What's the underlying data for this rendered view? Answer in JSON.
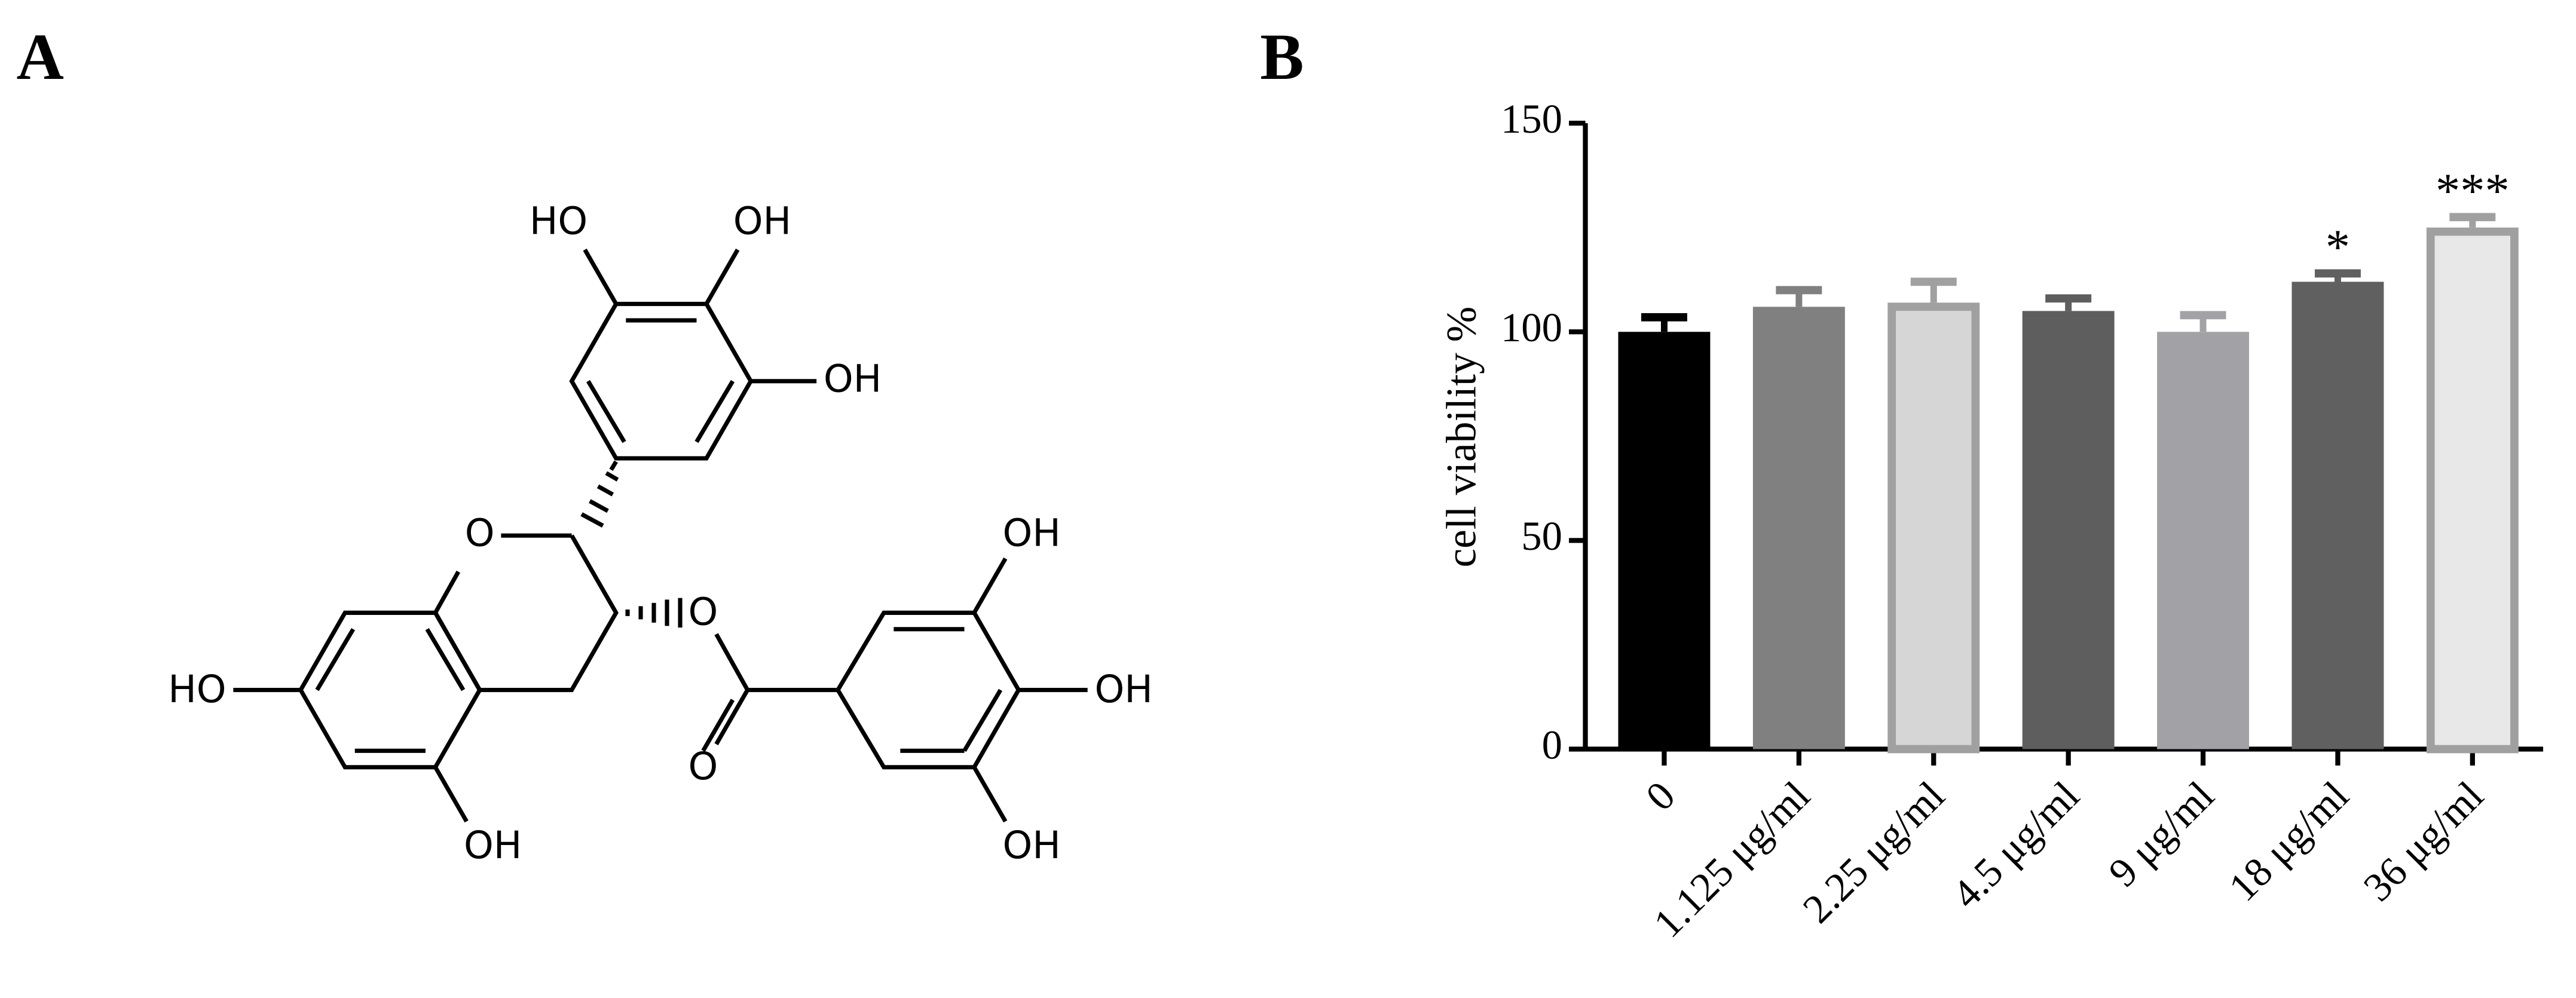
{
  "panel_labels": [
    "A",
    "B"
  ],
  "structure": {
    "atom_labels": [
      "HO",
      "OH",
      "OH",
      "O",
      "O",
      "HO",
      "OH",
      "O",
      "OH",
      "OH",
      "OH"
    ]
  },
  "chart_data": {
    "type": "bar",
    "ylabel": "cell viability %",
    "categories": [
      "0",
      "1.125 μg/ml",
      "2.25 μg/ml",
      "4.5 μg/ml",
      "9 μg/ml",
      "18 μg/ml",
      "36 μg/ml"
    ],
    "values": [
      100,
      106,
      107,
      105,
      100,
      112,
      125
    ],
    "errors": [
      3.5,
      4,
      5,
      3,
      4,
      2,
      2.5
    ],
    "colors": [
      "#000000",
      "#808080",
      "#d6d6d6",
      "#5e5e5e",
      "#a2a2a6",
      "#606060",
      "#e8e8e8"
    ],
    "outline_colors": [
      null,
      null,
      "#a0a0a0",
      null,
      null,
      null,
      "#a0a0a0"
    ],
    "significance": [
      null,
      null,
      null,
      null,
      null,
      "*",
      "***"
    ],
    "ylim": [
      0,
      150
    ],
    "yticks": [
      0,
      50,
      100,
      150
    ]
  }
}
